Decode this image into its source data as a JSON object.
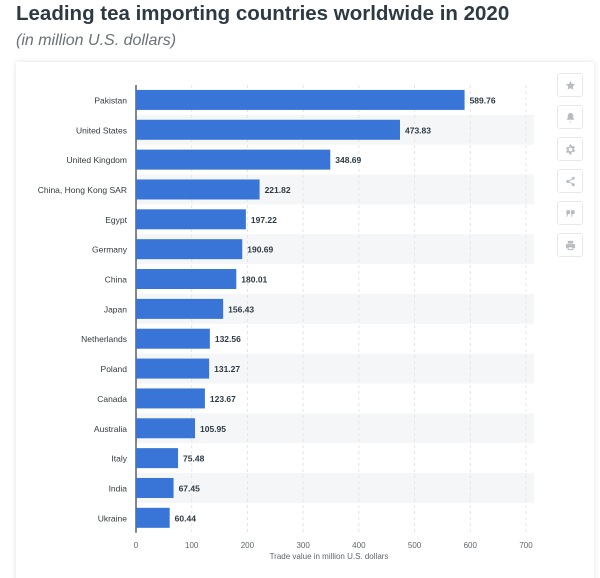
{
  "header": {
    "title": "Leading tea importing countries worldwide in 2020",
    "subtitle": "(in million U.S. dollars)"
  },
  "toolbar": {
    "icons": [
      "star-icon",
      "bell-icon",
      "gear-icon",
      "share-icon",
      "quote-icon",
      "print-icon"
    ]
  },
  "chart_data": {
    "type": "bar",
    "orientation": "horizontal",
    "title": "Leading tea importing countries worldwide in 2020",
    "subtitle": "(in million U.S. dollars)",
    "xlabel": "Trade value in million U.S. dollars",
    "ylabel": "",
    "xlim": [
      0,
      700
    ],
    "ticks": [
      0,
      100,
      200,
      300,
      400,
      500,
      600,
      700
    ],
    "categories": [
      "Pakistan",
      "United States",
      "United Kingdom",
      "China, Hong Kong SAR",
      "Egypt",
      "Germany",
      "China",
      "Japan",
      "Netherlands",
      "Poland",
      "Canada",
      "Australia",
      "Italy",
      "India",
      "Ukraine"
    ],
    "values": [
      589.76,
      473.83,
      348.69,
      221.82,
      197.22,
      190.69,
      180.01,
      156.43,
      132.56,
      131.27,
      123.67,
      105.95,
      75.48,
      67.45,
      60.44
    ],
    "value_labels": [
      "589.76",
      "473.83",
      "348.69",
      "221.82",
      "197.22",
      "190.69",
      "180.01",
      "156.43",
      "132.56",
      "131.27",
      "123.67",
      "105.95",
      "75.48",
      "67.45",
      "60.44"
    ],
    "bar_color": "#3875d7",
    "stripe_color": "#f5f6f7",
    "grid": true
  }
}
